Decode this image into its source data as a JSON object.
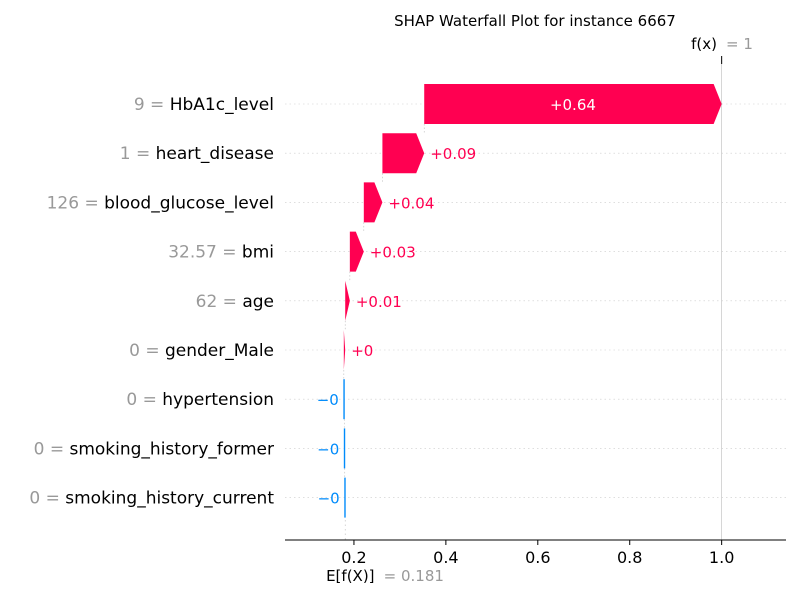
{
  "chart_data": {
    "type": "waterfall",
    "title": "SHAP Waterfall Plot for instance 6667",
    "base_value": 0.181,
    "output_value": 1,
    "fx_label": "f(x)",
    "fx_value_text": "= 1",
    "ex_label": "E[f(X)]",
    "ex_value_text": "= 0.181",
    "xlim": [
      0.05,
      1.14
    ],
    "xticks": [
      0.2,
      0.4,
      0.6,
      0.8,
      1.0
    ],
    "xtick_labels": [
      "0.2",
      "0.4",
      "0.6",
      "0.8",
      "1.0"
    ],
    "features": [
      {
        "name": "HbA1c_level",
        "value": "9",
        "shap": 0.64,
        "label": "+0.64"
      },
      {
        "name": "heart_disease",
        "value": "1",
        "shap": 0.09,
        "label": "+0.09"
      },
      {
        "name": "blood_glucose_level",
        "value": "126",
        "shap": 0.04,
        "label": "+0.04"
      },
      {
        "name": "bmi",
        "value": "32.57",
        "shap": 0.03,
        "label": "+0.03"
      },
      {
        "name": "age",
        "value": "62",
        "shap": 0.01,
        "label": "+0.01"
      },
      {
        "name": "gender_Male",
        "value": "0",
        "shap": 0.003,
        "label": "+0"
      },
      {
        "name": "hypertension",
        "value": "0",
        "shap": -0.001,
        "label": "−0"
      },
      {
        "name": "smoking_history_former",
        "value": "0",
        "shap": -0.001,
        "label": "−0"
      },
      {
        "name": "smoking_history_current",
        "value": "0",
        "shap": -0.001,
        "label": "−0"
      }
    ],
    "colors": {
      "positive": "#ff0051",
      "negative": "#008bfb"
    }
  }
}
